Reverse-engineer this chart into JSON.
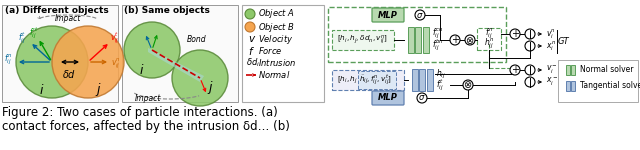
{
  "caption_line1": "Figure 2: Two cases of particle interactions. (a)",
  "caption_line2": "contact forces, affected by the intrusion δd… (b)",
  "bg_color": "#ffffff",
  "fig_width": 6.4,
  "fig_height": 1.5,
  "dpi": 100,
  "caption_fontsize": 8.5,
  "panel_a_title": "(a) Different objects",
  "panel_b_title": "(b) Same objects",
  "mlp_color": "#b8d9b0",
  "mlp_border": "#5a9e5a",
  "tangential_color": "#b0c4de",
  "tangential_border": "#6080b0",
  "obj_a_color": "#8dc86a",
  "obj_b_color": "#f5a550",
  "obj_a_ec": "#5a8a3a",
  "obj_b_ec": "#c07830"
}
